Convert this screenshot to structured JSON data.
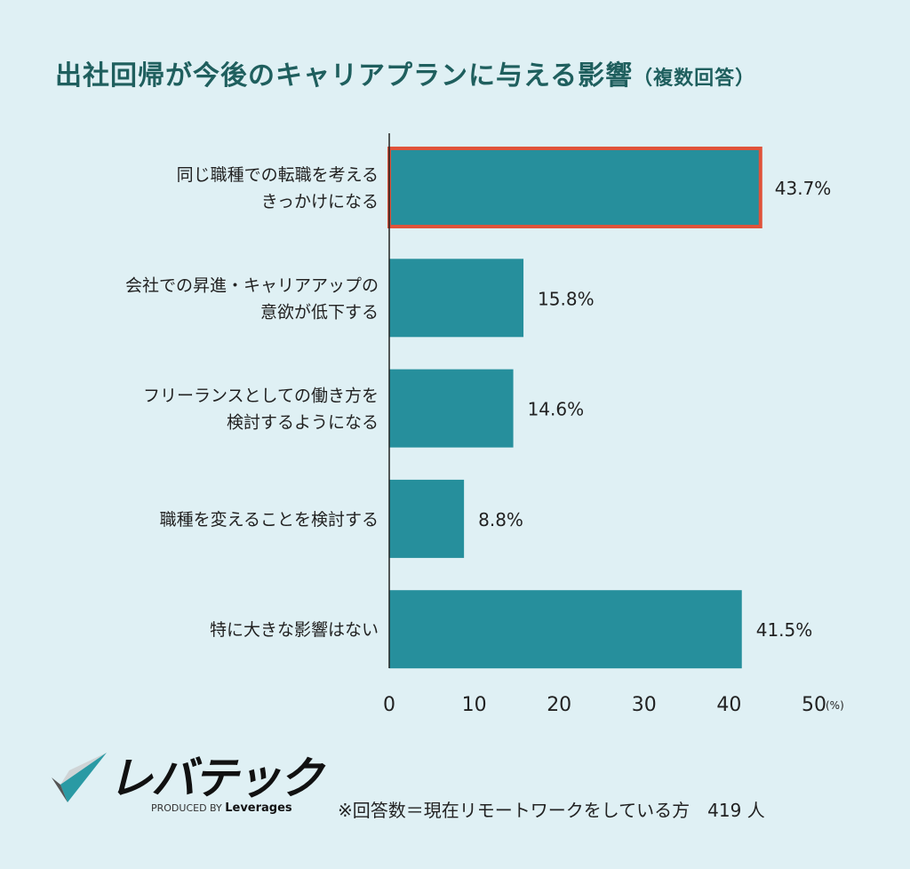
{
  "chart_data": {
    "type": "bar",
    "orientation": "horizontal",
    "title": "出社回帰が今後のキャリアプランに与える影響",
    "subtitle": "（複数回答）",
    "categories": [
      [
        "同じ職種での転職を考える",
        "きっかけになる"
      ],
      [
        "会社での昇進・キャリアアップの",
        "意欲が低下する"
      ],
      [
        "フリーランスとしての働き方を",
        "検討するようになる"
      ],
      [
        "職種を変えることを検討する"
      ],
      [
        "特に大きな影響はない"
      ]
    ],
    "values": [
      43.7,
      15.8,
      14.6,
      8.8,
      41.5
    ],
    "value_labels": [
      "43.7%",
      "15.8%",
      "14.6%",
      "8.8%",
      "41.5%"
    ],
    "highlighted_index": 0,
    "xlim": [
      0,
      50
    ],
    "xticks": [
      "0",
      "10",
      "20",
      "30",
      "40",
      "50"
    ],
    "xunit": "(%)",
    "grid": false,
    "colors": {
      "bar": "#268f9c",
      "highlight_border": "#e0533a",
      "title": "#1f5f5e",
      "background": "#dff0f4"
    }
  },
  "footer": {
    "logo_text": "レバテック",
    "produced_by": "PRODUCED BY",
    "produced_brand": "Leverages",
    "note": "※回答数＝現在リモートワークをしている方　419 人"
  }
}
